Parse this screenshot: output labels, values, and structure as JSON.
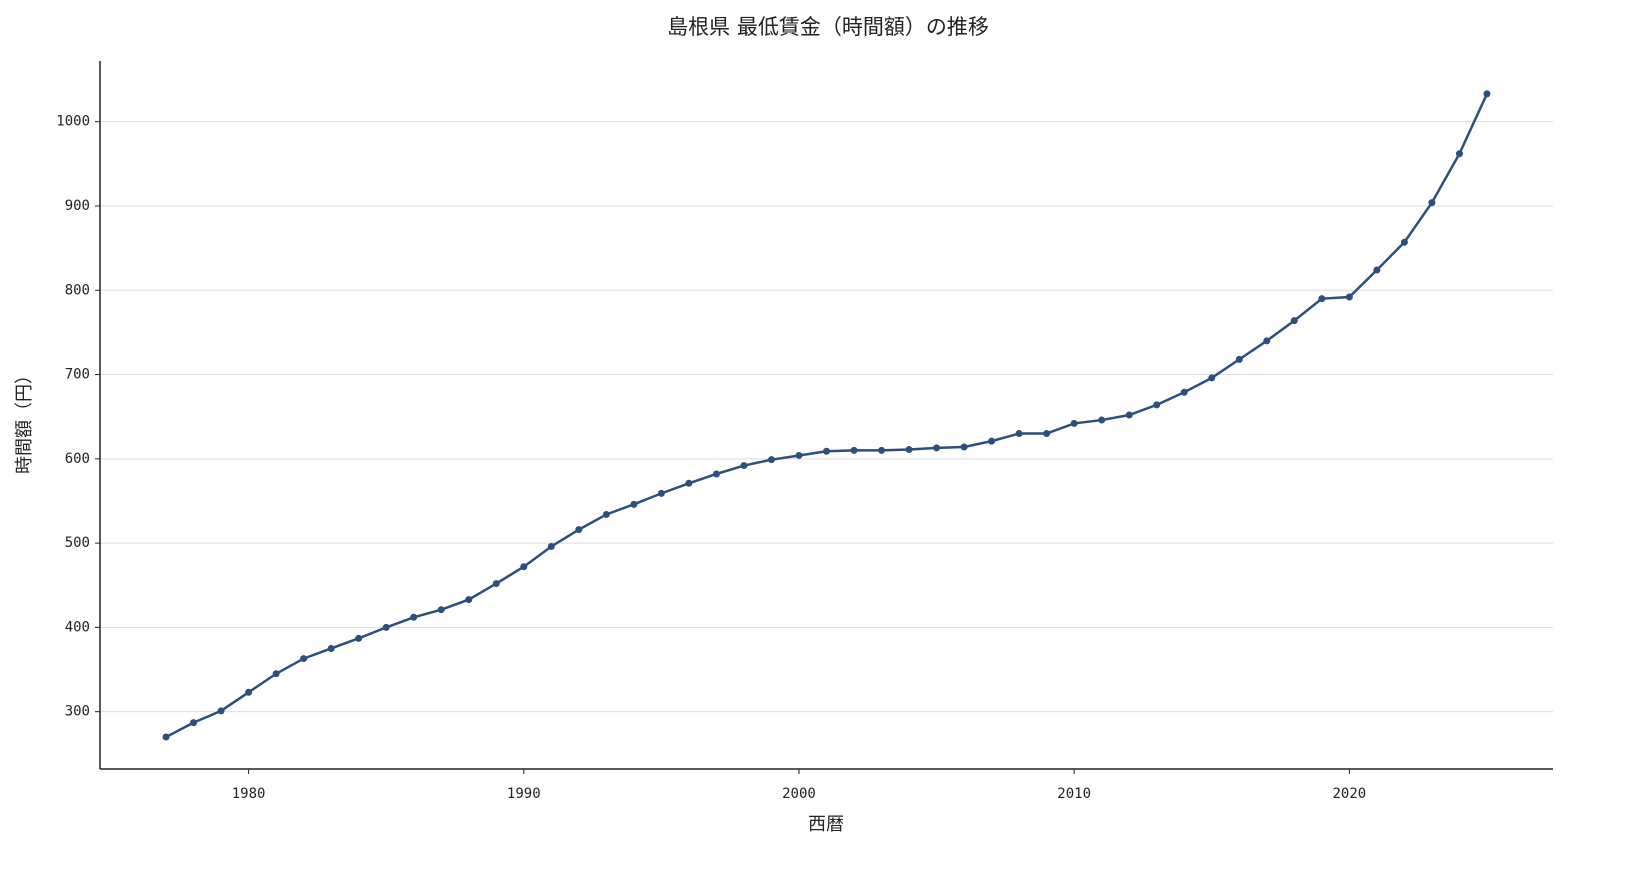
{
  "chart_data": {
    "type": "line",
    "title": "島根県 最低賃金（時間額）の推移",
    "x_label": "西暦",
    "y_label": "時間額（円）",
    "x": [
      1977,
      1978,
      1979,
      1980,
      1981,
      1982,
      1983,
      1984,
      1985,
      1986,
      1987,
      1988,
      1989,
      1990,
      1991,
      1992,
      1993,
      1994,
      1995,
      1996,
      1997,
      1998,
      1999,
      2000,
      2001,
      2002,
      2003,
      2004,
      2005,
      2006,
      2007,
      2008,
      2009,
      2010,
      2011,
      2012,
      2013,
      2014,
      2015,
      2016,
      2017,
      2018,
      2019,
      2020,
      2021,
      2022,
      2023,
      2024,
      2025
    ],
    "series": [
      {
        "name": "時間額",
        "color": "#2c4f7c",
        "values": [
          270,
          287,
          301,
          323,
          345,
          363,
          375,
          387,
          400,
          412,
          421,
          433,
          452,
          472,
          496,
          516,
          534,
          546,
          559,
          571,
          582,
          592,
          599,
          604,
          609,
          610,
          610,
          611,
          613,
          614,
          621,
          630,
          630,
          642,
          646,
          652,
          664,
          679,
          696,
          718,
          740,
          764,
          790,
          792,
          824,
          857,
          904,
          962,
          1033
        ]
      }
    ],
    "xlim": [
      1974.6,
      2027.4
    ],
    "xticks": [
      1980,
      1990,
      2000,
      2010,
      2020
    ],
    "ylim": [
      232,
      1072
    ],
    "yticks": [
      300,
      400,
      500,
      600,
      700,
      800,
      900,
      1000
    ],
    "grid": true
  }
}
